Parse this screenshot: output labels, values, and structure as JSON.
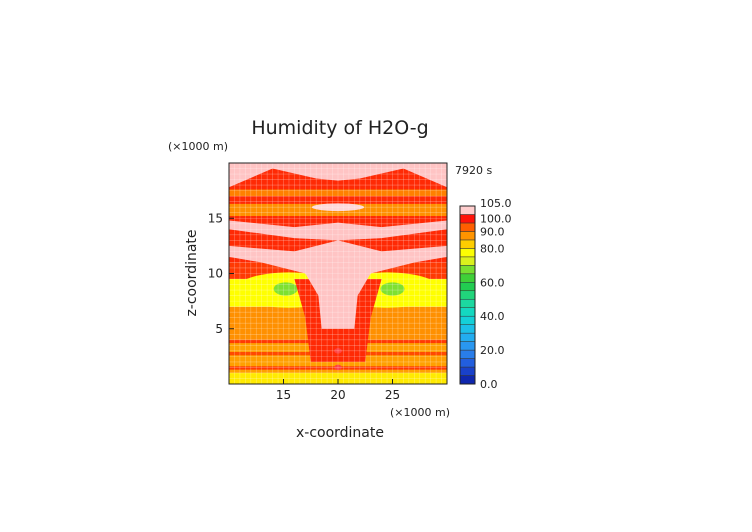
{
  "chart_data": {
    "type": "heatmap",
    "title": "Humidity of H2O-g",
    "time_label": "7920 s",
    "xlabel": "x-coordinate",
    "ylabel": "z-coordinate",
    "x_unit_label": "(×1000 m)",
    "y_unit_label": "(×1000 m)",
    "xlim": [
      10,
      30
    ],
    "ylim": [
      0,
      20
    ],
    "x_ticks": [
      15,
      20,
      25
    ],
    "y_ticks": [
      5,
      10,
      15
    ],
    "colorbar": {
      "levels": [
        0,
        5,
        10,
        15,
        20,
        25,
        30,
        35,
        40,
        45,
        50,
        55,
        60,
        65,
        70,
        75,
        80,
        85,
        90,
        95,
        100,
        105
      ],
      "labels": [
        "0.0",
        "20.0",
        "40.0",
        "60.0",
        "80.0",
        "90.0",
        "100.0",
        "105.0"
      ],
      "label_values": [
        0,
        20,
        40,
        60,
        80,
        90,
        100,
        105
      ]
    },
    "layers": [
      {
        "name": "pink-band-top",
        "value": 102
      },
      {
        "name": "red-band",
        "value": 96
      },
      {
        "name": "orange-band",
        "value": 88
      },
      {
        "name": "yellow-band",
        "value": 76
      },
      {
        "name": "green-patch",
        "value": 68
      }
    ],
    "grid": true
  }
}
